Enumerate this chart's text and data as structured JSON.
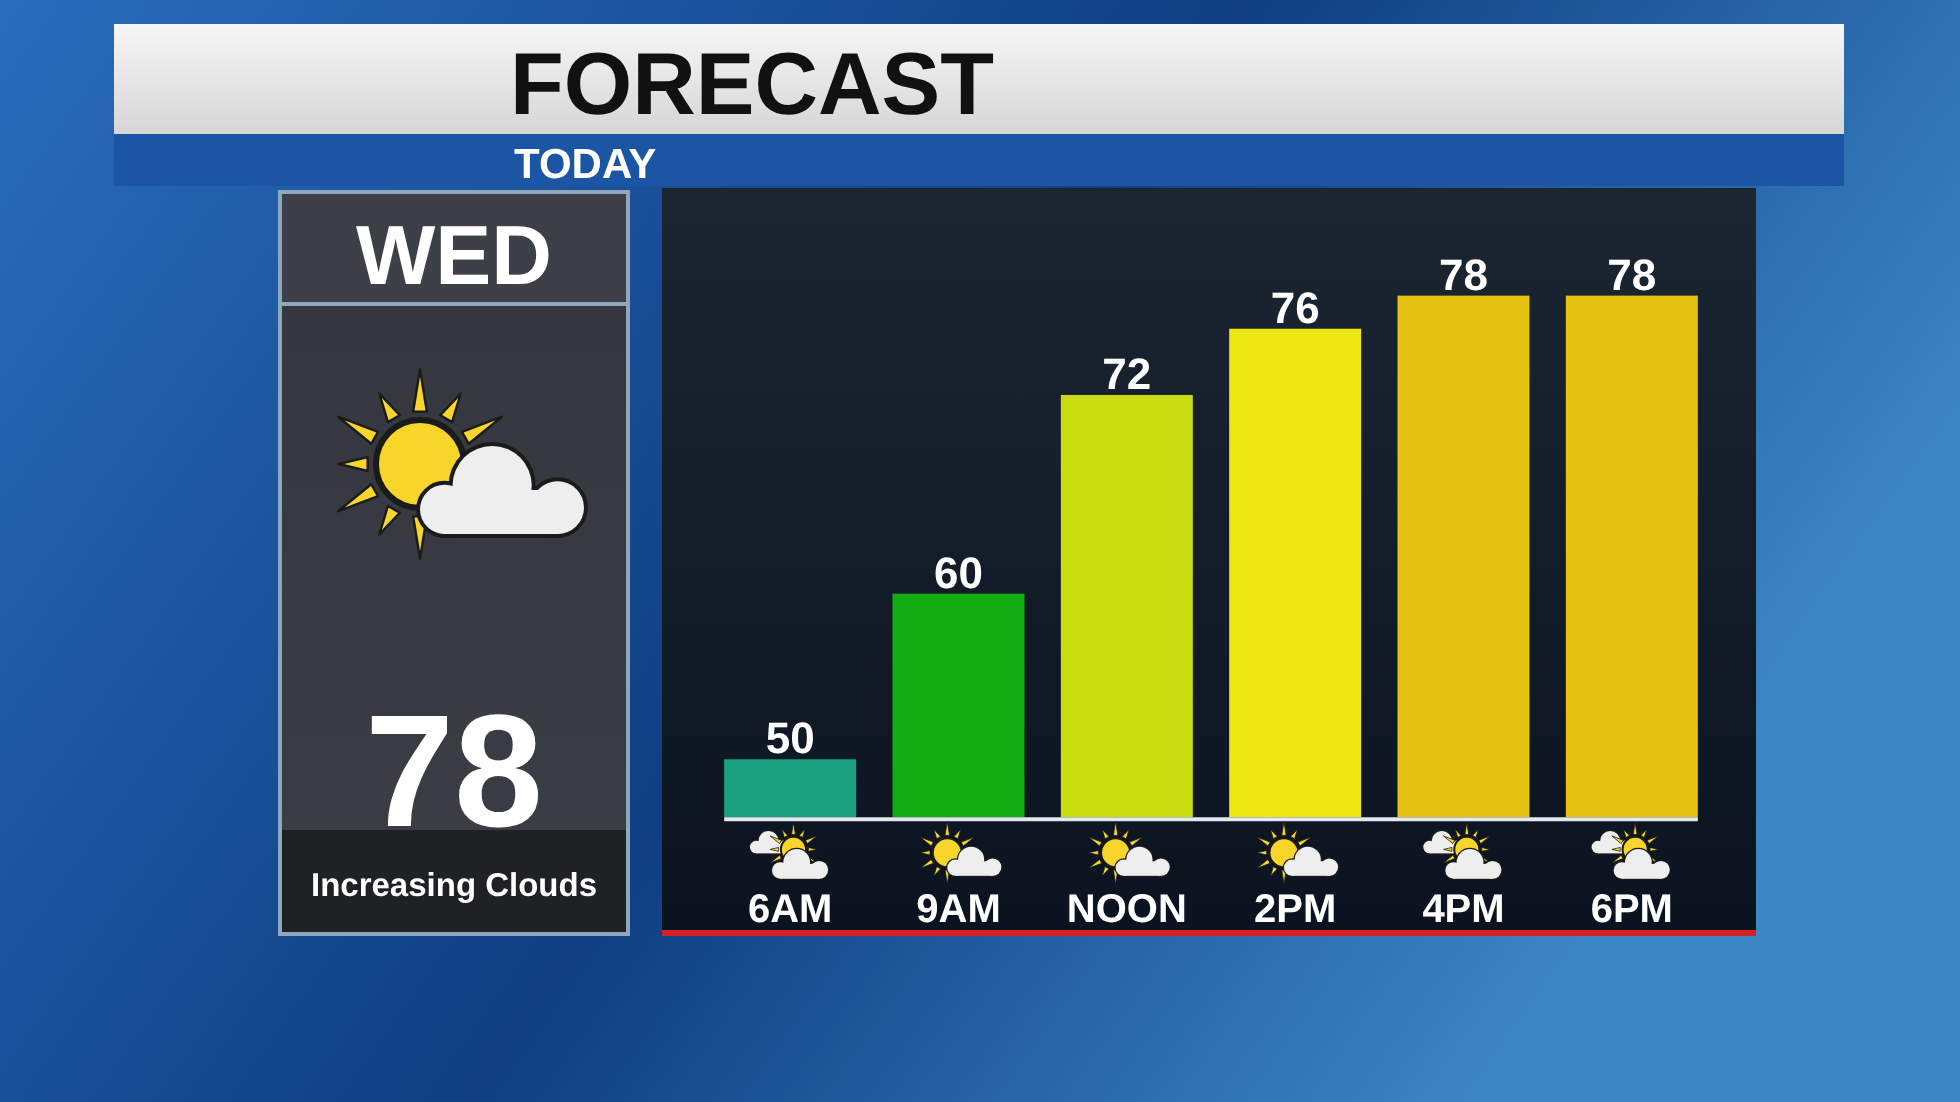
{
  "chart_data": {
    "type": "bar",
    "title": "FORECAST",
    "subtitle": "TODAY",
    "categories": [
      "6AM",
      "9AM",
      "NOON",
      "2PM",
      "4PM",
      "6PM"
    ],
    "values": [
      50,
      60,
      72,
      76,
      78,
      78
    ],
    "colors": [
      "#18a07e",
      "#12ad12",
      "#c8dc10",
      "#eee610",
      "#e6c212",
      "#e6c212"
    ],
    "ylim": [
      46.5,
      84.5
    ],
    "tick_labels": "x",
    "data_labels": true,
    "annotations": [
      "WED",
      "78",
      "Increasing Clouds"
    ]
  }
}
